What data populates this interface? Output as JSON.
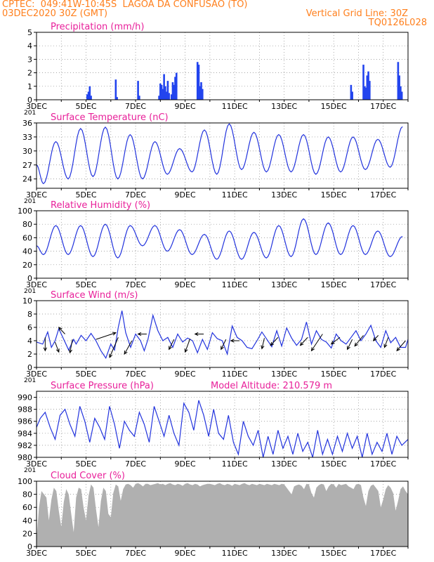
{
  "header": {
    "title_line": "CPTEC:  049:41W-10:45S  LAGOA DA CONFUSAO (TO)",
    "run_date": "03DEC2020 30Z (GMT)",
    "grid_note": "Vertical Grid Line: 30Z",
    "model_code": "TQ0126L028"
  },
  "colors": {
    "header_text": "#ff7f1c",
    "panel_title": "#e8209a",
    "series_line": "#2233dd",
    "precip_bars": "#2244ee",
    "cloud_fill": "#b0b0b0",
    "wind_arrows": "#000000",
    "grid": "#888888"
  },
  "time_axis": {
    "start": "03DEC",
    "days": 15,
    "tick_labels": [
      "3DEC",
      "5DEC",
      "7DEC",
      "9DEC",
      "11DEC",
      "13DEC",
      "15DEC",
      "17DEC"
    ],
    "stub_label": "201"
  },
  "chart_data": [
    {
      "type": "bar",
      "title": "Precipitation (mm/h)",
      "ylim": [
        0,
        5
      ],
      "yticks": [
        0,
        1,
        2,
        3,
        4,
        5
      ],
      "x_unit": "day offset from 03DEC",
      "x": [
        2.05,
        2.1,
        2.15,
        2.2,
        3.2,
        3.25,
        4.1,
        4.15,
        4.95,
        5.0,
        5.05,
        5.1,
        5.15,
        5.2,
        5.25,
        5.3,
        5.35,
        5.45,
        5.5,
        5.55,
        5.6,
        5.65,
        6.5,
        6.55,
        6.6,
        6.65,
        6.7,
        12.7,
        12.75,
        13.2,
        13.25,
        13.3,
        13.35,
        13.4,
        13.45,
        14.6,
        14.65,
        14.7,
        14.75
      ],
      "values": [
        0.4,
        0.6,
        1.0,
        0.3,
        1.5,
        0.2,
        1.4,
        0.3,
        0.3,
        1.2,
        1.1,
        0.8,
        1.9,
        1.0,
        0.6,
        1.4,
        0.5,
        0.4,
        1.3,
        1.1,
        1.7,
        2.0,
        2.8,
        2.6,
        1.0,
        1.3,
        0.8,
        1.1,
        0.6,
        2.6,
        1.0,
        0.9,
        1.8,
        2.1,
        1.4,
        2.8,
        1.8,
        1.0,
        0.6
      ]
    },
    {
      "type": "line",
      "title": "Surface Temperature (nC)",
      "ylim": [
        22,
        36
      ],
      "yticks": [
        24,
        27,
        30,
        33,
        36
      ],
      "x_unit": "day offset from 03DEC",
      "daily_max": [
        32.0,
        34.8,
        35.1,
        33.5,
        32.0,
        30.5,
        34.5,
        35.8,
        34.0,
        33.5,
        33.5,
        33.0,
        33.0,
        32.5,
        35.2
      ],
      "daily_min": [
        23.0,
        24.0,
        24.5,
        24.0,
        24.0,
        25.0,
        25.5,
        25.0,
        26.0,
        25.5,
        25.5,
        25.0,
        25.5,
        26.0,
        26.5
      ],
      "start_value": 27.0
    },
    {
      "type": "line",
      "title": "Relative Humidity (%)",
      "ylim": [
        0,
        100
      ],
      "yticks": [
        0,
        20,
        40,
        60,
        80,
        100
      ],
      "x_unit": "day offset from 03DEC",
      "daily_max": [
        78,
        78,
        80,
        78,
        78,
        72,
        65,
        70,
        68,
        78,
        88,
        82,
        78,
        70,
        62
      ],
      "daily_min": [
        35,
        35,
        32,
        30,
        48,
        40,
        35,
        28,
        28,
        30,
        32,
        35,
        35,
        35,
        32
      ],
      "start_value": 48
    },
    {
      "type": "line",
      "title": "Surface Wind (m/s)",
      "ylim": [
        0,
        10
      ],
      "yticks": [
        0,
        2,
        4,
        6,
        8,
        10
      ],
      "x_unit": "day offset from 03DEC",
      "x": [
        0.0,
        0.25,
        0.45,
        0.6,
        0.75,
        0.9,
        1.1,
        1.3,
        1.5,
        1.6,
        1.8,
        2.0,
        2.2,
        2.4,
        2.6,
        2.8,
        3.0,
        3.15,
        3.3,
        3.45,
        3.6,
        3.8,
        4.0,
        4.2,
        4.35,
        4.5,
        4.7,
        4.9,
        5.1,
        5.3,
        5.5,
        5.7,
        5.9,
        6.1,
        6.3,
        6.5,
        6.7,
        6.9,
        7.1,
        7.3,
        7.5,
        7.7,
        7.9,
        8.1,
        8.3,
        8.5,
        8.7,
        8.9,
        9.1,
        9.3,
        9.5,
        9.7,
        9.9,
        10.1,
        10.3,
        10.5,
        10.7,
        10.9,
        11.1,
        11.3,
        11.5,
        11.7,
        11.9,
        12.1,
        12.3,
        12.5,
        12.7,
        12.9,
        13.1,
        13.3,
        13.5,
        13.7,
        13.9,
        14.1,
        14.3,
        14.5,
        14.7,
        14.9,
        15.0
      ],
      "values": [
        3.8,
        3.5,
        5.3,
        3.0,
        4.0,
        5.8,
        4.2,
        2.6,
        4.2,
        3.5,
        4.8,
        4.0,
        5.1,
        4.0,
        2.5,
        1.4,
        3.5,
        2.6,
        6.0,
        8.5,
        5.2,
        3.0,
        5.0,
        4.0,
        2.5,
        4.2,
        7.8,
        5.5,
        4.0,
        4.5,
        3.0,
        5.0,
        3.8,
        4.4,
        4.0,
        2.2,
        4.2,
        2.7,
        5.2,
        4.3,
        4.0,
        2.0,
        6.2,
        4.5,
        4.0,
        3.0,
        2.8,
        4.0,
        5.3,
        4.2,
        3.1,
        5.5,
        3.2,
        5.9,
        4.4,
        3.3,
        4.2,
        6.8,
        3.5,
        5.5,
        4.2,
        3.8,
        2.9,
        5.0,
        4.0,
        3.5,
        4.5,
        5.5,
        4.0,
        5.0,
        6.3,
        4.0,
        3.0,
        5.5,
        3.7,
        4.5,
        3.0,
        3.0,
        4.2
      ],
      "arrows": [
        {
          "x": 0.35,
          "value": 4.5,
          "dx": 0.0,
          "dy": -2.0
        },
        {
          "x": 0.75,
          "value": 3.8,
          "dx": 0.15,
          "dy": -1.5
        },
        {
          "x": 1.15,
          "value": 5.0,
          "dx": -0.25,
          "dy": 1.0
        },
        {
          "x": 1.45,
          "value": 4.2,
          "dx": -0.1,
          "dy": -2.0
        },
        {
          "x": 2.4,
          "value": 4.2,
          "dx": 0.8,
          "dy": 1.0
        },
        {
          "x": 3.3,
          "value": 4.5,
          "dx": -0.35,
          "dy": -3.0
        },
        {
          "x": 3.85,
          "value": 4.0,
          "dx": -0.3,
          "dy": -2.0
        },
        {
          "x": 4.45,
          "value": 5.0,
          "dx": -0.35,
          "dy": 0.0
        },
        {
          "x": 5.55,
          "value": 4.2,
          "dx": -0.2,
          "dy": -1.5
        },
        {
          "x": 6.2,
          "value": 4.3,
          "dx": -0.2,
          "dy": -2.0
        },
        {
          "x": 6.75,
          "value": 5.0,
          "dx": -0.35,
          "dy": 0.0
        },
        {
          "x": 7.65,
          "value": 4.2,
          "dx": -0.2,
          "dy": -1.5
        },
        {
          "x": 8.2,
          "value": 4.0,
          "dx": -0.35,
          "dy": 0.0
        },
        {
          "x": 9.2,
          "value": 4.4,
          "dx": -0.1,
          "dy": -1.6
        },
        {
          "x": 9.75,
          "value": 4.5,
          "dx": -0.3,
          "dy": -1.2
        },
        {
          "x": 10.95,
          "value": 4.5,
          "dx": -0.3,
          "dy": -1.2
        },
        {
          "x": 11.55,
          "value": 5.0,
          "dx": -0.45,
          "dy": -2.5
        },
        {
          "x": 12.25,
          "value": 4.5,
          "dx": -0.35,
          "dy": -1.0
        },
        {
          "x": 12.75,
          "value": 4.2,
          "dx": -0.2,
          "dy": -1.5
        },
        {
          "x": 13.2,
          "value": 4.8,
          "dx": -0.35,
          "dy": -1.6
        },
        {
          "x": 13.8,
          "value": 4.8,
          "dx": -0.2,
          "dy": -0.8
        },
        {
          "x": 14.2,
          "value": 4.5,
          "dx": -0.15,
          "dy": -1.5
        },
        {
          "x": 14.9,
          "value": 4.0,
          "dx": -0.35,
          "dy": -1.5
        }
      ]
    },
    {
      "type": "line",
      "title": "Surface Pressure (hPa)",
      "subtitle": "Model Altitude: 210.579  m",
      "ylim": [
        980,
        991
      ],
      "yticks": [
        980,
        982,
        984,
        986,
        988,
        990
      ],
      "x_unit": "day offset from 03DEC",
      "x": [
        0.0,
        0.15,
        0.35,
        0.55,
        0.75,
        0.95,
        1.15,
        1.35,
        1.55,
        1.75,
        1.95,
        2.15,
        2.35,
        2.55,
        2.75,
        2.95,
        3.15,
        3.35,
        3.55,
        3.75,
        3.95,
        4.15,
        4.35,
        4.55,
        4.75,
        4.95,
        5.15,
        5.35,
        5.55,
        5.75,
        5.95,
        6.15,
        6.35,
        6.55,
        6.75,
        6.95,
        7.15,
        7.35,
        7.55,
        7.75,
        7.95,
        8.15,
        8.35,
        8.55,
        8.75,
        8.95,
        9.15,
        9.35,
        9.55,
        9.75,
        9.95,
        10.15,
        10.35,
        10.55,
        10.75,
        10.95,
        11.15,
        11.35,
        11.55,
        11.75,
        11.95,
        12.15,
        12.35,
        12.55,
        12.75,
        12.95,
        13.15,
        13.35,
        13.55,
        13.75,
        13.95,
        14.15,
        14.35,
        14.55,
        14.75,
        15.0
      ],
      "values": [
        985.0,
        986.5,
        987.5,
        985.0,
        983.0,
        987.0,
        988.0,
        985.5,
        983.5,
        988.5,
        986.0,
        982.5,
        986.5,
        985.0,
        983.0,
        988.5,
        985.5,
        981.5,
        986.0,
        984.5,
        983.5,
        987.5,
        985.5,
        982.5,
        988.5,
        986.0,
        983.5,
        987.0,
        984.0,
        982.0,
        989.0,
        987.5,
        984.5,
        989.5,
        987.0,
        983.5,
        988.0,
        984.0,
        983.0,
        987.0,
        982.5,
        980.5,
        986.0,
        983.5,
        982.0,
        984.5,
        980.0,
        983.5,
        980.5,
        984.5,
        981.5,
        983.5,
        980.5,
        984.0,
        981.0,
        982.5,
        980.0,
        984.5,
        980.5,
        983.0,
        980.5,
        983.5,
        981.0,
        984.0,
        981.5,
        983.5,
        980.0,
        984.0,
        980.5,
        982.5,
        981.0,
        984.0,
        980.5,
        983.5,
        982.0,
        983.0
      ]
    },
    {
      "type": "area",
      "title": "Cloud Cover (%)",
      "ylim": [
        0,
        100
      ],
      "yticks": [
        0,
        20,
        40,
        60,
        80,
        100
      ],
      "x_unit": "day offset from 03DEC",
      "x": [
        0.0,
        0.1,
        0.2,
        0.3,
        0.4,
        0.5,
        0.6,
        0.7,
        0.8,
        0.9,
        1.0,
        1.1,
        1.2,
        1.3,
        1.4,
        1.5,
        1.6,
        1.7,
        1.8,
        1.9,
        2.0,
        2.1,
        2.2,
        2.3,
        2.4,
        2.5,
        2.6,
        2.7,
        2.8,
        2.9,
        3.0,
        3.1,
        3.2,
        3.3,
        3.4,
        3.5,
        3.6,
        3.7,
        3.8,
        3.9,
        4.0,
        4.1,
        4.2,
        4.3,
        4.4,
        4.5,
        4.6,
        4.7,
        4.8,
        4.9,
        5.0,
        5.1,
        5.2,
        5.3,
        5.4,
        5.5,
        5.6,
        5.7,
        5.8,
        5.9,
        6.0,
        6.1,
        6.2,
        6.3,
        6.4,
        6.5,
        6.6,
        6.7,
        6.8,
        6.9,
        7.0,
        7.1,
        7.2,
        7.3,
        7.4,
        7.5,
        7.6,
        7.7,
        7.8,
        7.9,
        8.0,
        8.1,
        8.2,
        8.3,
        8.4,
        8.5,
        8.6,
        8.7,
        8.8,
        8.9,
        9.0,
        9.1,
        9.2,
        9.3,
        9.4,
        9.5,
        9.6,
        9.7,
        9.8,
        9.9,
        10.0,
        10.1,
        10.2,
        10.3,
        10.4,
        10.5,
        10.6,
        10.7,
        10.8,
        10.9,
        11.0,
        11.1,
        11.2,
        11.3,
        11.4,
        11.5,
        11.6,
        11.7,
        11.8,
        11.9,
        12.0,
        12.1,
        12.2,
        12.3,
        12.4,
        12.5,
        12.6,
        12.7,
        12.8,
        12.9,
        13.0,
        13.1,
        13.2,
        13.3,
        13.4,
        13.5,
        13.6,
        13.7,
        13.8,
        13.9,
        14.0,
        14.1,
        14.2,
        14.3,
        14.4,
        14.5,
        14.6,
        14.7,
        14.8,
        14.9,
        15.0
      ],
      "values": [
        10,
        60,
        85,
        80,
        75,
        40,
        72,
        90,
        85,
        55,
        30,
        68,
        88,
        80,
        50,
        22,
        75,
        90,
        88,
        60,
        40,
        78,
        95,
        90,
        58,
        30,
        70,
        90,
        85,
        50,
        45,
        82,
        95,
        92,
        70,
        88,
        95,
        96,
        94,
        90,
        96,
        97,
        95,
        92,
        96,
        96,
        94,
        95,
        96,
        97,
        95,
        96,
        94,
        96,
        97,
        95,
        94,
        96,
        95,
        93,
        96,
        97,
        95,
        94,
        96,
        95,
        92,
        94,
        95,
        96,
        96,
        95,
        94,
        96,
        97,
        95,
        94,
        96,
        95,
        93,
        96,
        95,
        94,
        96,
        97,
        95,
        94,
        96,
        95,
        94,
        96,
        95,
        94,
        96,
        95,
        94,
        96,
        95,
        94,
        96,
        95,
        90,
        85,
        80,
        92,
        94,
        95,
        93,
        88,
        96,
        95,
        82,
        75,
        90,
        94,
        96,
        95,
        85,
        92,
        96,
        95,
        90,
        96,
        94,
        95,
        96,
        92,
        90,
        88,
        95,
        96,
        94,
        75,
        62,
        85,
        93,
        95,
        90,
        85,
        60,
        72,
        88,
        94,
        90,
        82,
        55,
        70,
        88,
        92,
        85,
        80
      ]
    }
  ]
}
